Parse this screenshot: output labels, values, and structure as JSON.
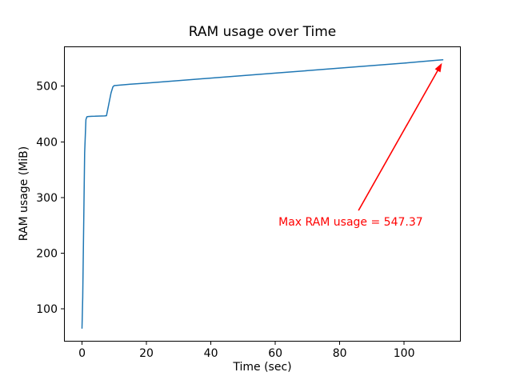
{
  "chart_data": {
    "type": "line",
    "title": "RAM usage over Time",
    "xlabel": "Time (sec)",
    "ylabel": "RAM usage (MiB)",
    "xlim": [
      -5.6,
      117.6
    ],
    "ylim": [
      40.9,
      571.5
    ],
    "xticks": [
      "0",
      "20",
      "40",
      "60",
      "80",
      "100"
    ],
    "xtick_values": [
      0,
      20,
      40,
      60,
      80,
      100
    ],
    "yticks": [
      "100",
      "200",
      "300",
      "400",
      "500"
    ],
    "ytick_values": [
      100,
      200,
      300,
      400,
      500
    ],
    "grid": false,
    "legend": null,
    "line_color": "#1f77b4",
    "line_width": 1.5,
    "axis_color": "#000000",
    "series": [
      {
        "name": "RAM usage",
        "x": [
          0,
          0.2,
          0.5,
          0.8,
          1.2,
          1.5,
          2,
          3,
          4,
          5,
          6,
          7,
          7.6,
          8.2,
          9,
          9.6,
          10,
          15,
          20,
          30,
          40,
          50,
          60,
          70,
          80,
          90,
          100,
          106,
          110,
          112
        ],
        "y": [
          65,
          120,
          250,
          380,
          440,
          445,
          445.5,
          445.8,
          446,
          446.2,
          446.4,
          446.6,
          447,
          465,
          488,
          499,
          501,
          503.5,
          505.5,
          510,
          514.5,
          519,
          523.5,
          528,
          532.5,
          537,
          541.5,
          544.5,
          546.5,
          547.37
        ]
      }
    ],
    "annotation": {
      "text": "Max RAM usage = 547.37",
      "color": "#ff0000",
      "point": [
        112,
        547.37
      ],
      "text_pos": [
        61,
        266.5
      ]
    },
    "max_value": 547.37
  }
}
